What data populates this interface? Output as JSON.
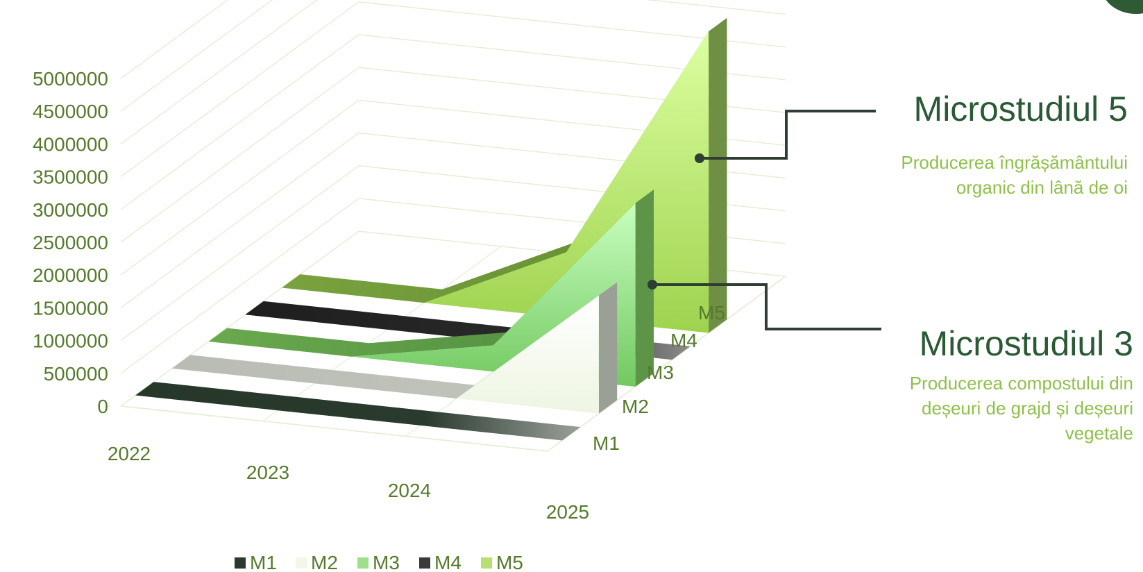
{
  "chart_data": {
    "type": "area",
    "subtype": "3d-area",
    "x": [
      "2022",
      "2023",
      "2024",
      "2025"
    ],
    "ylim": [
      0,
      5000000
    ],
    "yticks": [
      0,
      500000,
      1000000,
      1500000,
      2000000,
      2500000,
      3000000,
      3500000,
      4000000,
      4500000,
      5000000
    ],
    "series": [
      {
        "name": "M1",
        "values": [
          0,
          0,
          0,
          0
        ],
        "color": "#2a3a2e"
      },
      {
        "name": "M2",
        "values": [
          0,
          0,
          0,
          1800000
        ],
        "color": "#f2f7e8"
      },
      {
        "name": "M3",
        "values": [
          0,
          0,
          400000,
          2800000
        ],
        "color": "#9ee08a"
      },
      {
        "name": "M4",
        "values": [
          0,
          0,
          0,
          0
        ],
        "color": "#3a3a3a"
      },
      {
        "name": "M5",
        "values": [
          0,
          0,
          1000000,
          4600000
        ],
        "color": "#b8e070"
      }
    ],
    "grid": true,
    "legend_position": "bottom"
  },
  "callouts": [
    {
      "title": "Microstudiul 5",
      "description_lines": [
        "Producerea îngrășământului",
        "organic din lână de oi"
      ]
    },
    {
      "title": "Microstudiul 3",
      "description_lines": [
        "Producerea compostului din",
        "deșeuri de grajd și deșeuri",
        "vegetale"
      ]
    }
  ],
  "colors": {
    "tick_text": "#557a2c",
    "grid": "#e8edd6",
    "callout_title": "#2a5a34",
    "callout_desc": "#8fc04a",
    "connector": "#2e3e33"
  }
}
